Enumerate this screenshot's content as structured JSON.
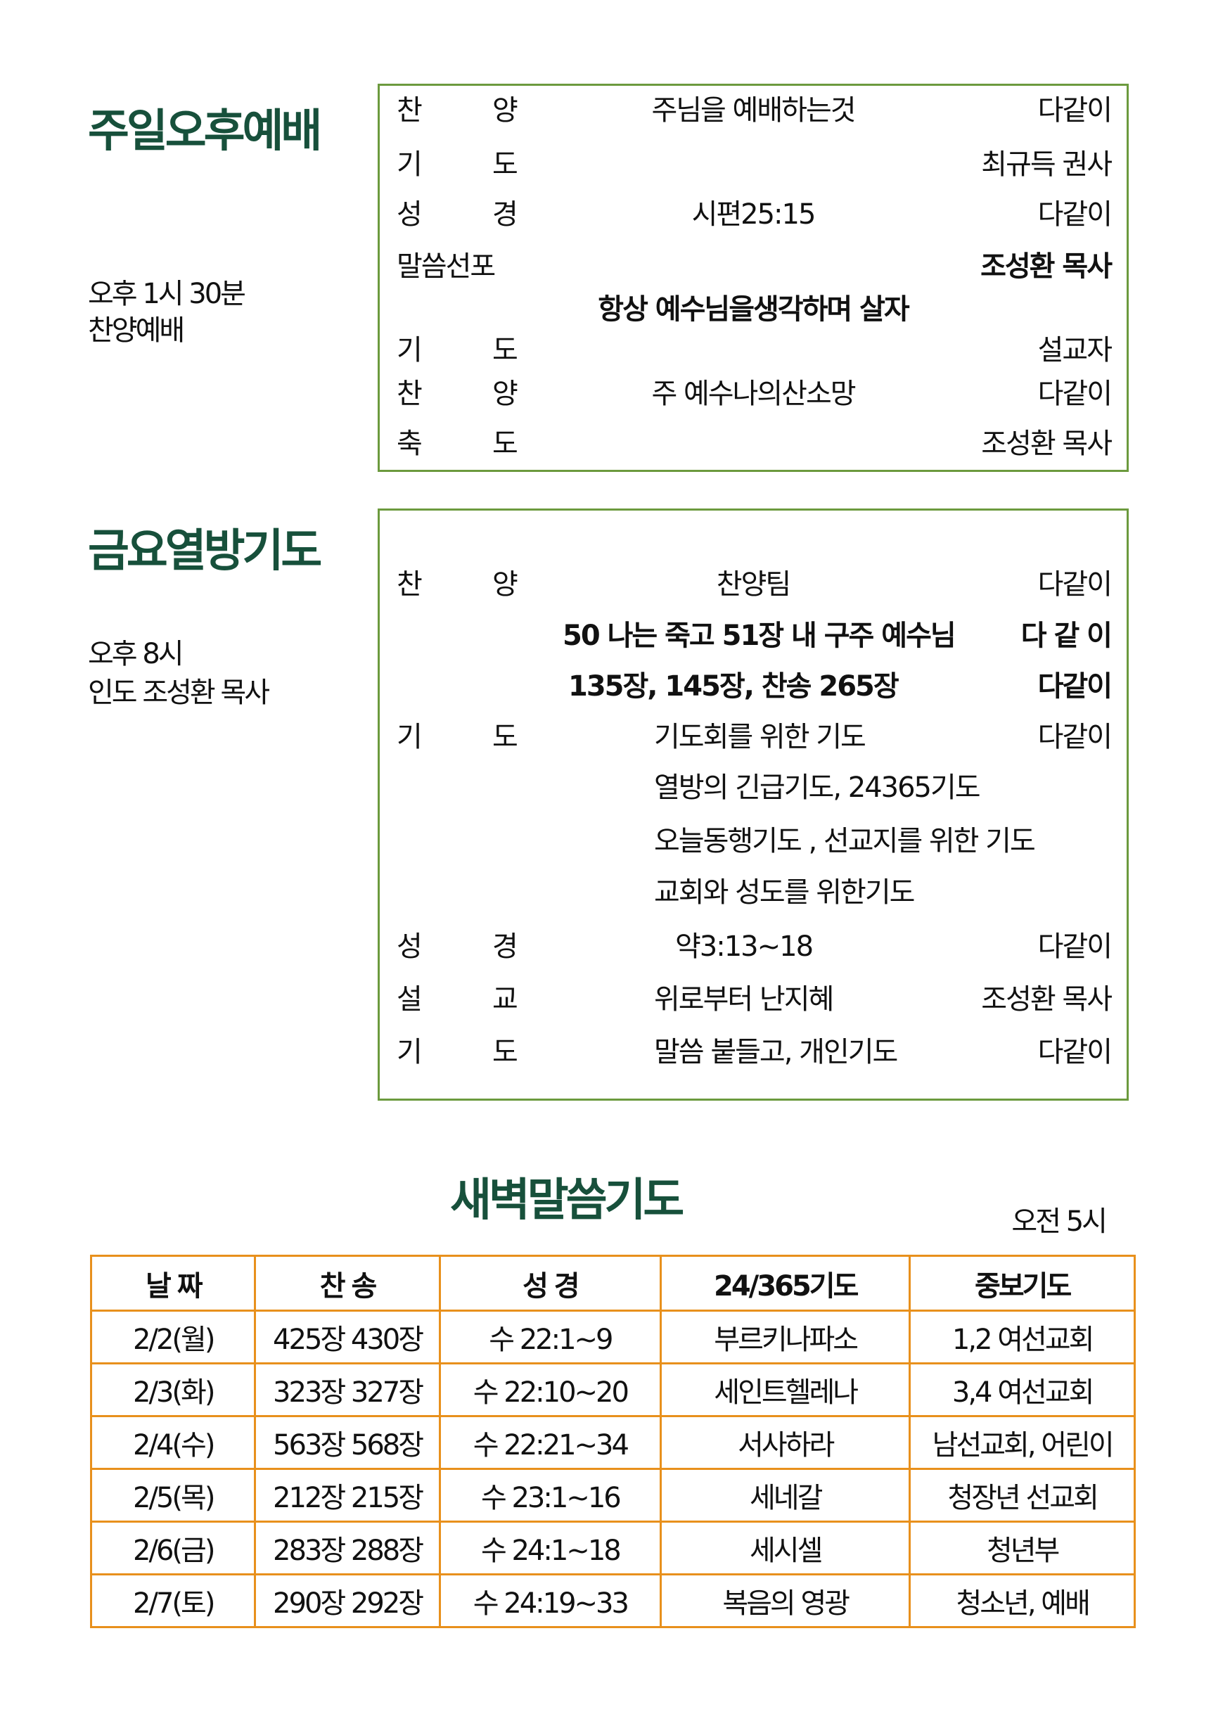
{
  "sunday": {
    "title": "주일오후예배",
    "time": "오후 1시 30분",
    "subtitle": "찬양예배",
    "rows": [
      {
        "l1": "찬",
        "l2": "양",
        "mid": "주님을 예배하는것",
        "right": "다같이"
      },
      {
        "l1": "기",
        "l2": "도",
        "mid": "",
        "right": "최규득 권사"
      },
      {
        "l1": "성",
        "l2": "경",
        "mid": "시편25:15",
        "right": "다같이"
      },
      {
        "l1": "말씀선포",
        "l2": "",
        "mid": "",
        "right": "조성환 목사"
      },
      {
        "l1": "",
        "l2": "",
        "mid": "항상 예수님을생각하며 살자",
        "right": ""
      },
      {
        "l1": "기",
        "l2": "도",
        "mid": "",
        "right": "설교자"
      },
      {
        "l1": "찬",
        "l2": "양",
        "mid": "주 예수나의산소망",
        "right": "다같이"
      },
      {
        "l1": "축",
        "l2": "도",
        "mid": "",
        "right": "조성환 목사"
      }
    ]
  },
  "friday": {
    "title": "금요열방기도",
    "time": "오후 8시",
    "leader": "인도 조성환 목사",
    "rows": [
      {
        "l1": "찬",
        "l2": "양",
        "mid": "찬양팀",
        "right": "다같이"
      },
      {
        "l1": "",
        "l2": "",
        "mid": "50 나는 죽고  51장 내 구주 예수님",
        "right": "다 같 이"
      },
      {
        "l1": "",
        "l2": "",
        "mid": "135장, 145장, 찬송 265장",
        "right": "다같이"
      },
      {
        "l1": "기",
        "l2": "도",
        "mid": "기도회를 위한 기도",
        "right": "다같이"
      },
      {
        "l1": "",
        "l2": "",
        "mid": "열방의 긴급기도, 24365기도",
        "right": ""
      },
      {
        "l1": "",
        "l2": "",
        "mid": "오늘동행기도 , 선교지를 위한 기도",
        "right": ""
      },
      {
        "l1": "",
        "l2": "",
        "mid": "교회와 성도를 위한기도",
        "right": ""
      },
      {
        "l1": "성",
        "l2": "경",
        "mid": "약3:13~18",
        "right": "다같이"
      },
      {
        "l1": "설",
        "l2": "교",
        "mid": "위로부터 난지혜",
        "right": "조성환 목사"
      },
      {
        "l1": "기",
        "l2": "도",
        "mid": "말씀 붙들고, 개인기도",
        "right": "다같이"
      }
    ]
  },
  "dawn": {
    "title": "새벽말씀기도",
    "time": "오전 5시",
    "headers": [
      "날 짜",
      "찬 송",
      "성 경",
      "24/365기도",
      "중보기도"
    ],
    "rows": [
      [
        "2/2(월)",
        "425장 430장",
        "수 22:1~9",
        "부르키나파소",
        "1,2 여선교회"
      ],
      [
        "2/3(화)",
        "323장 327장",
        "수 22:10~20",
        "세인트헬레나",
        "3,4 여선교회"
      ],
      [
        "2/4(수)",
        "563장 568장",
        "수 22:21~34",
        "서사하라",
        "남선교회, 어린이"
      ],
      [
        "2/5(목)",
        "212장 215장",
        "수 23:1~16",
        "세네갈",
        "청장년 선교회"
      ],
      [
        "2/6(금)",
        "283장 288장",
        "수 24:1~18",
        "세시셀",
        "청년부"
      ],
      [
        "2/7(토)",
        "290장 292장",
        "수 24:19~33",
        "복음의 영광",
        "청소년, 예배"
      ]
    ]
  },
  "colors": {
    "title": "#17503b",
    "box_border": "#6c9a3e",
    "table_border": "#e8901c"
  }
}
